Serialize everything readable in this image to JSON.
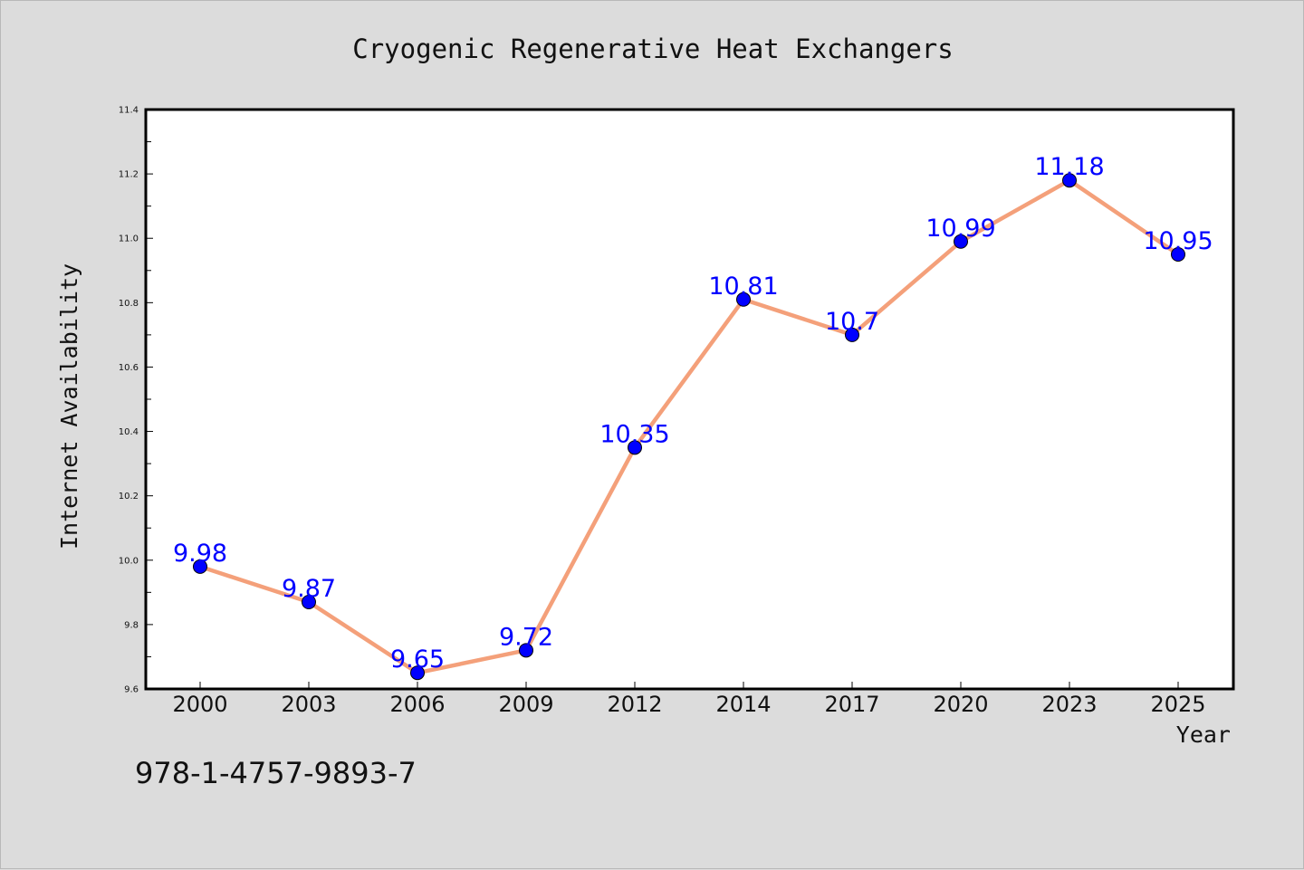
{
  "chart_data": {
    "type": "line",
    "title": "Cryogenic Regenerative Heat Exchangers",
    "xlabel": "Year",
    "ylabel": "Internet Availability",
    "categories": [
      "2000",
      "2003",
      "2006",
      "2009",
      "2012",
      "2014",
      "2017",
      "2020",
      "2023",
      "2025"
    ],
    "values": [
      9.98,
      9.87,
      9.65,
      9.72,
      10.35,
      10.81,
      10.7,
      10.99,
      11.18,
      10.95
    ],
    "data_labels": [
      "9.98",
      "9.87",
      "9.65",
      "9.72",
      "10.35",
      "10.81",
      "10.7",
      "10.99",
      "11.18",
      "10.95"
    ],
    "ylim": [
      9.6,
      11.4
    ],
    "yticks": [
      "9.6",
      "9.8",
      "10.0",
      "10.2",
      "10.4",
      "10.6",
      "10.8",
      "11.0",
      "11.2",
      "11.4"
    ],
    "grid": false,
    "line_color": "#f4a07a",
    "marker_color": "#0000ff",
    "label_color": "#0000ff",
    "plot_background": "#ffffff",
    "figure_background": "#dcdcdc"
  },
  "annotation": "978-1-4757-9893-7"
}
